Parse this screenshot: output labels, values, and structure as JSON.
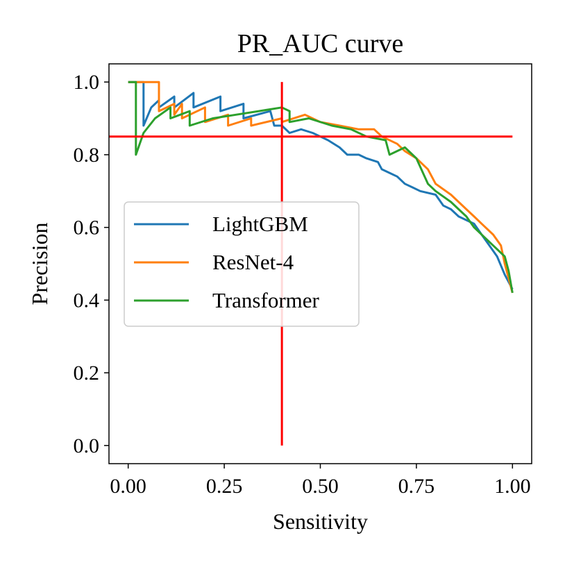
{
  "chart_data": {
    "type": "line",
    "title": "PR_AUC curve",
    "xlabel": "Sensitivity",
    "ylabel": "Precision",
    "xlim": [
      -0.05,
      1.05
    ],
    "ylim": [
      -0.05,
      1.05
    ],
    "xticks": [
      0.0,
      0.25,
      0.5,
      0.75,
      1.0
    ],
    "xtick_labels": [
      "0.00",
      "0.25",
      "0.50",
      "0.75",
      "1.00"
    ],
    "yticks": [
      0.0,
      0.2,
      0.4,
      0.6,
      0.8,
      1.0
    ],
    "ytick_labels": [
      "0.0",
      "0.2",
      "0.4",
      "0.6",
      "0.8",
      "1.0"
    ],
    "grid": false,
    "legend_position": "center-left",
    "series": [
      {
        "name": "LightGBM",
        "color": "#1f77b4",
        "points": [
          [
            0.0,
            1.0
          ],
          [
            0.04,
            1.0
          ],
          [
            0.04,
            0.88
          ],
          [
            0.06,
            0.93
          ],
          [
            0.08,
            0.95
          ],
          [
            0.08,
            0.93
          ],
          [
            0.12,
            0.96
          ],
          [
            0.12,
            0.93
          ],
          [
            0.17,
            0.97
          ],
          [
            0.17,
            0.93
          ],
          [
            0.24,
            0.96
          ],
          [
            0.24,
            0.92
          ],
          [
            0.3,
            0.94
          ],
          [
            0.3,
            0.9
          ],
          [
            0.37,
            0.92
          ],
          [
            0.38,
            0.88
          ],
          [
            0.4,
            0.88
          ],
          [
            0.42,
            0.86
          ],
          [
            0.45,
            0.87
          ],
          [
            0.48,
            0.86
          ],
          [
            0.5,
            0.85
          ],
          [
            0.52,
            0.84
          ],
          [
            0.55,
            0.82
          ],
          [
            0.57,
            0.8
          ],
          [
            0.6,
            0.8
          ],
          [
            0.62,
            0.79
          ],
          [
            0.65,
            0.78
          ],
          [
            0.66,
            0.76
          ],
          [
            0.68,
            0.75
          ],
          [
            0.7,
            0.74
          ],
          [
            0.72,
            0.72
          ],
          [
            0.74,
            0.71
          ],
          [
            0.76,
            0.7
          ],
          [
            0.8,
            0.69
          ],
          [
            0.82,
            0.66
          ],
          [
            0.84,
            0.65
          ],
          [
            0.86,
            0.63
          ],
          [
            0.9,
            0.61
          ],
          [
            0.92,
            0.58
          ],
          [
            0.94,
            0.55
          ],
          [
            0.96,
            0.52
          ],
          [
            0.98,
            0.47
          ],
          [
            0.99,
            0.45
          ],
          [
            1.0,
            0.43
          ]
        ]
      },
      {
        "name": "ResNet-4",
        "color": "#ff7f0e",
        "points": [
          [
            0.0,
            1.0
          ],
          [
            0.08,
            1.0
          ],
          [
            0.08,
            0.92
          ],
          [
            0.12,
            0.94
          ],
          [
            0.12,
            0.91
          ],
          [
            0.14,
            0.94
          ],
          [
            0.14,
            0.9
          ],
          [
            0.2,
            0.93
          ],
          [
            0.2,
            0.89
          ],
          [
            0.26,
            0.91
          ],
          [
            0.26,
            0.88
          ],
          [
            0.32,
            0.9
          ],
          [
            0.32,
            0.88
          ],
          [
            0.4,
            0.9
          ],
          [
            0.4,
            0.89
          ],
          [
            0.46,
            0.91
          ],
          [
            0.5,
            0.89
          ],
          [
            0.55,
            0.88
          ],
          [
            0.6,
            0.87
          ],
          [
            0.64,
            0.87
          ],
          [
            0.66,
            0.85
          ],
          [
            0.7,
            0.83
          ],
          [
            0.72,
            0.81
          ],
          [
            0.75,
            0.79
          ],
          [
            0.78,
            0.76
          ],
          [
            0.8,
            0.72
          ],
          [
            0.84,
            0.69
          ],
          [
            0.86,
            0.67
          ],
          [
            0.88,
            0.65
          ],
          [
            0.9,
            0.63
          ],
          [
            0.92,
            0.61
          ],
          [
            0.95,
            0.58
          ],
          [
            0.97,
            0.55
          ],
          [
            0.98,
            0.5
          ],
          [
            0.99,
            0.46
          ],
          [
            1.0,
            0.42
          ]
        ]
      },
      {
        "name": "Transformer",
        "color": "#2ca02c",
        "points": [
          [
            0.0,
            1.0
          ],
          [
            0.02,
            1.0
          ],
          [
            0.02,
            0.8
          ],
          [
            0.04,
            0.86
          ],
          [
            0.07,
            0.9
          ],
          [
            0.11,
            0.93
          ],
          [
            0.11,
            0.9
          ],
          [
            0.16,
            0.92
          ],
          [
            0.16,
            0.88
          ],
          [
            0.22,
            0.9
          ],
          [
            0.28,
            0.91
          ],
          [
            0.34,
            0.92
          ],
          [
            0.4,
            0.93
          ],
          [
            0.42,
            0.92
          ],
          [
            0.42,
            0.89
          ],
          [
            0.47,
            0.9
          ],
          [
            0.53,
            0.88
          ],
          [
            0.58,
            0.87
          ],
          [
            0.62,
            0.85
          ],
          [
            0.67,
            0.84
          ],
          [
            0.68,
            0.8
          ],
          [
            0.72,
            0.82
          ],
          [
            0.75,
            0.79
          ],
          [
            0.78,
            0.72
          ],
          [
            0.8,
            0.7
          ],
          [
            0.84,
            0.67
          ],
          [
            0.86,
            0.65
          ],
          [
            0.88,
            0.63
          ],
          [
            0.9,
            0.6
          ],
          [
            0.92,
            0.58
          ],
          [
            0.95,
            0.55
          ],
          [
            0.98,
            0.52
          ],
          [
            0.99,
            0.48
          ],
          [
            1.0,
            0.42
          ]
        ]
      }
    ],
    "reference_lines": [
      {
        "orientation": "horizontal",
        "value": 0.85,
        "from": -0.05,
        "to": 1.0,
        "color": "#ff0000"
      },
      {
        "orientation": "vertical",
        "value": 0.4,
        "from": 0.0,
        "to": 1.0,
        "color": "#ff0000"
      }
    ]
  }
}
